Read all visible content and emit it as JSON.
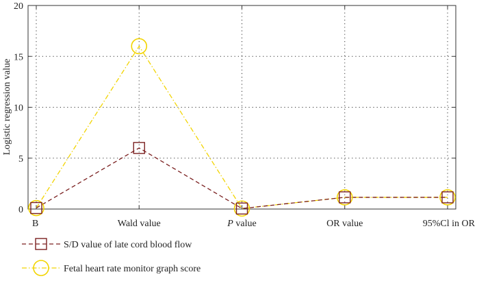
{
  "chart_data": {
    "type": "line",
    "title": "",
    "xlabel": "",
    "ylabel": "Logistic regression value",
    "categories": [
      "B",
      "Wald value",
      "P value",
      "OR value",
      "95%Cl in OR"
    ],
    "category_italic_prefix": {
      "P value": "P"
    },
    "ylim": [
      0,
      20
    ],
    "yticks": [
      0,
      5,
      10,
      15,
      20
    ],
    "grid": "dotted",
    "legend_position": "bottom",
    "series": [
      {
        "name": "S/D value of late cord blood flow",
        "values": [
          0.1,
          6.0,
          0.05,
          1.15,
          1.15
        ],
        "color": "#7a1f1f",
        "marker": "square",
        "dash": "dashed"
      },
      {
        "name": "Fetal heart rate monitor graph score",
        "values": [
          0.1,
          16.0,
          0.05,
          1.15,
          1.15
        ],
        "color": "#f2d400",
        "marker": "circle",
        "dash": "dash-dot"
      }
    ]
  }
}
